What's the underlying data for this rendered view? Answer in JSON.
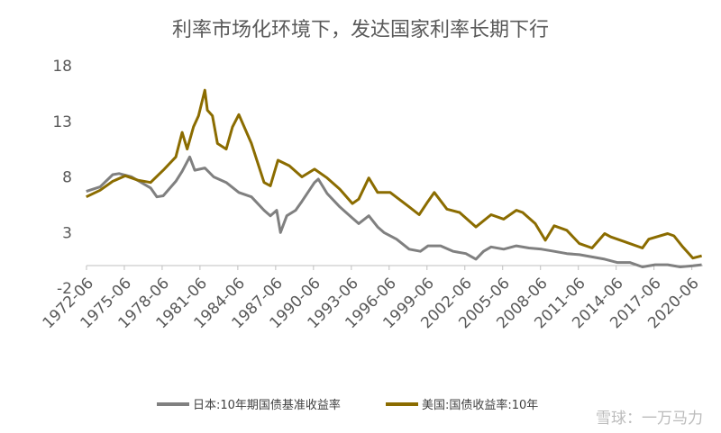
{
  "chart_data": {
    "type": "line",
    "title": "利率市场化环境下，发达国家利率长期下行",
    "xlabel": "",
    "ylabel": "",
    "ylim": [
      -2,
      18
    ],
    "yticks": [
      -2,
      3,
      8,
      13,
      18
    ],
    "xlim": [
      1972.42,
      2021.3
    ],
    "xtick_labels": [
      "1972-06",
      "1975-06",
      "1978-06",
      "1981-06",
      "1984-06",
      "1987-06",
      "1990-06",
      "1993-06",
      "1996-06",
      "1999-06",
      "2002-06",
      "2005-06",
      "2008-06",
      "2011-06",
      "2014-06",
      "2017-06",
      "2020-06"
    ],
    "grid": false,
    "legend_position": "bottom",
    "series": [
      {
        "name": "日本:10年期国债基准收益率",
        "color": "#808080",
        "x": [
          1972.4,
          1973.5,
          1974.5,
          1975.0,
          1976.0,
          1977.5,
          1978.0,
          1978.5,
          1979.5,
          1980.0,
          1980.6,
          1981.0,
          1981.8,
          1982.5,
          1983.5,
          1984.5,
          1985.5,
          1986.5,
          1987.0,
          1987.5,
          1987.8,
          1988.3,
          1989.0,
          1989.5,
          1990.5,
          1990.8,
          1991.5,
          1992.5,
          1993.5,
          1994.0,
          1994.8,
          1995.5,
          1996.0,
          1997.0,
          1998.0,
          1998.9,
          1999.5,
          2000.5,
          2001.5,
          2002.5,
          2003.3,
          2003.9,
          2004.5,
          2005.5,
          2006.5,
          2007.5,
          2008.5,
          2009.5,
          2010.5,
          2011.5,
          2012.5,
          2013.5,
          2014.5,
          2015.5,
          2016.5,
          2017.5,
          2018.5,
          2019.5,
          2020.5,
          2021.2
        ],
        "values": [
          6.7,
          7.1,
          8.2,
          8.3,
          8.0,
          7.0,
          6.2,
          6.3,
          7.6,
          8.5,
          9.8,
          8.6,
          8.8,
          8.0,
          7.5,
          6.6,
          6.2,
          5.0,
          4.5,
          5.0,
          3.0,
          4.5,
          5.0,
          5.8,
          7.5,
          7.8,
          6.5,
          5.3,
          4.3,
          3.8,
          4.5,
          3.5,
          3.0,
          2.4,
          1.5,
          1.3,
          1.8,
          1.8,
          1.3,
          1.1,
          0.6,
          1.3,
          1.7,
          1.5,
          1.8,
          1.6,
          1.5,
          1.3,
          1.1,
          1.0,
          0.8,
          0.6,
          0.3,
          0.3,
          -0.1,
          0.1,
          0.1,
          -0.1,
          0.0,
          0.1
        ]
      },
      {
        "name": "美国:国债收益率:10年",
        "color": "#8B6C00",
        "x": [
          1972.4,
          1973.5,
          1974.5,
          1975.5,
          1976.5,
          1977.5,
          1978.5,
          1979.5,
          1980.0,
          1980.4,
          1980.9,
          1981.3,
          1981.8,
          1982.0,
          1982.4,
          1982.8,
          1983.5,
          1984.0,
          1984.5,
          1985.5,
          1986.5,
          1987.0,
          1987.6,
          1988.5,
          1989.5,
          1990.5,
          1991.5,
          1992.5,
          1993.5,
          1994.0,
          1994.8,
          1995.5,
          1996.5,
          1998.0,
          1998.8,
          1999.5,
          2000.0,
          2001.0,
          2002.0,
          2003.3,
          2004.5,
          2005.5,
          2006.5,
          2007.0,
          2008.0,
          2008.8,
          2009.5,
          2010.5,
          2011.5,
          2012.5,
          2013.5,
          2014.0,
          2015.0,
          2016.5,
          2017.0,
          2018.5,
          2019.0,
          2019.7,
          2020.5,
          2021.2
        ],
        "values": [
          6.2,
          6.8,
          7.6,
          8.1,
          7.7,
          7.5,
          8.6,
          9.8,
          12.0,
          10.5,
          12.5,
          13.5,
          15.8,
          14.0,
          13.5,
          11.0,
          10.5,
          12.5,
          13.6,
          11.0,
          7.5,
          7.2,
          9.5,
          9.0,
          8.0,
          8.7,
          7.9,
          6.9,
          5.6,
          6.0,
          7.9,
          6.6,
          6.6,
          5.3,
          4.6,
          5.8,
          6.6,
          5.1,
          4.8,
          3.5,
          4.6,
          4.2,
          5.0,
          4.8,
          3.8,
          2.3,
          3.6,
          3.2,
          2.0,
          1.6,
          2.9,
          2.6,
          2.2,
          1.6,
          2.4,
          2.9,
          2.7,
          1.7,
          0.7,
          0.9
        ]
      }
    ]
  },
  "watermark": {
    "text": "雪球：一万马力"
  }
}
